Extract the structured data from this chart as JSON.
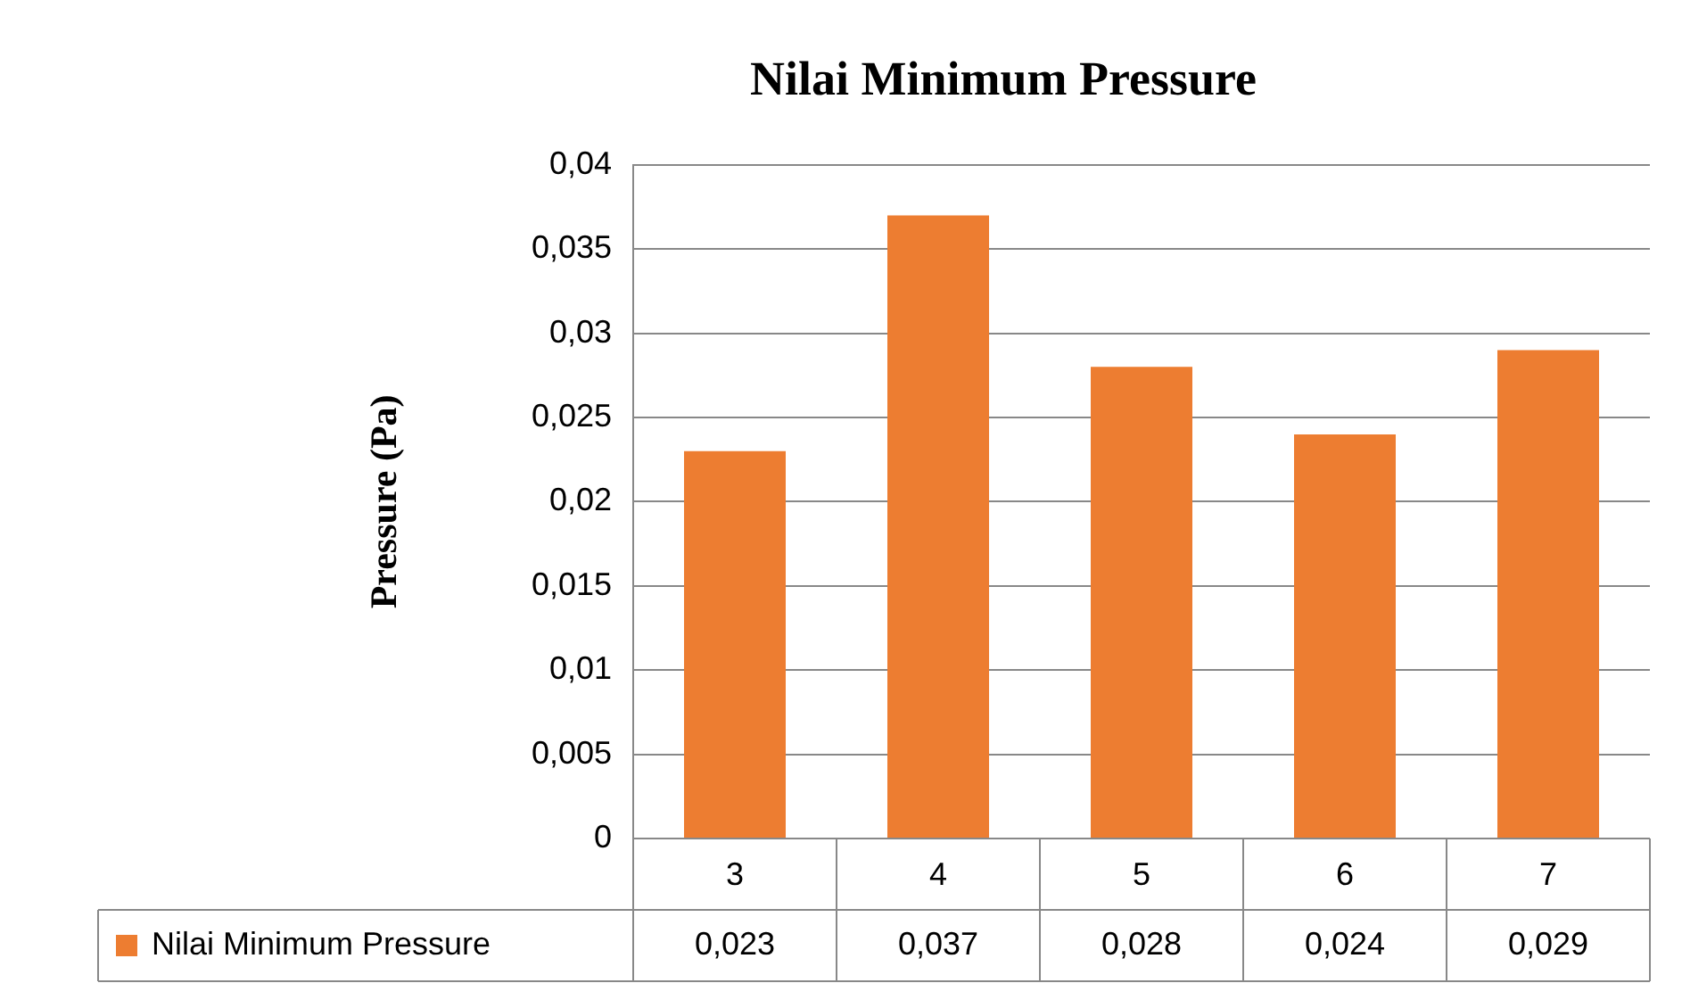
{
  "chart_data": {
    "type": "bar",
    "title": "Nilai Minimum Pressure",
    "ylabel": "Pressure (Pa)",
    "categories": [
      "3",
      "4",
      "5",
      "6",
      "7"
    ],
    "series": [
      {
        "name": "Nilai Minimum Pressure",
        "color": "#ed7d31",
        "values": [
          0.023,
          0.037,
          0.028,
          0.024,
          0.029
        ],
        "value_labels": [
          "0,023",
          "0,037",
          "0,028",
          "0,024",
          "0,029"
        ]
      }
    ],
    "ylim": [
      0,
      0.04
    ],
    "yticks": [
      {
        "value": 0,
        "label": "0"
      },
      {
        "value": 0.005,
        "label": "0,005"
      },
      {
        "value": 0.01,
        "label": "0,01"
      },
      {
        "value": 0.015,
        "label": "0,015"
      },
      {
        "value": 0.02,
        "label": "0,02"
      },
      {
        "value": 0.025,
        "label": "0,025"
      },
      {
        "value": 0.03,
        "label": "0,03"
      },
      {
        "value": 0.035,
        "label": "0,035"
      },
      {
        "value": 0.04,
        "label": "0,04"
      }
    ],
    "grid": "y",
    "legend": "bottom"
  }
}
